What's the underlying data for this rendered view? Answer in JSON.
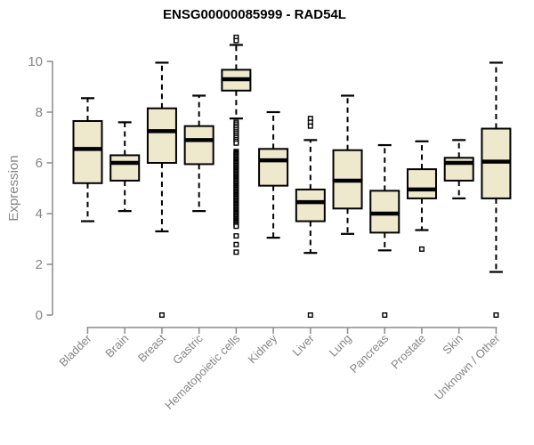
{
  "title": "ENSG00000085999 - RAD54L",
  "chart_data": {
    "type": "boxplot",
    "title": "ENSG00000085999 - RAD54L",
    "xlabel": "",
    "ylabel": "Expression",
    "ylim": [
      0,
      10
    ],
    "yticks": [
      0,
      2,
      4,
      6,
      8,
      10
    ],
    "grid": false,
    "legend_position": "none",
    "categories": [
      "Bladder",
      "Brain",
      "Breast",
      "Gastric",
      "Hematopoietic cells",
      "Kidney",
      "Liver",
      "Lung",
      "Pancreas",
      "Prostate",
      "Skin",
      "Unknown / Other"
    ],
    "series": [
      {
        "name": "Bladder",
        "whisker_low": 3.7,
        "q1": 5.2,
        "median": 6.55,
        "q3": 7.65,
        "whisker_high": 8.55,
        "outliers": []
      },
      {
        "name": "Brain",
        "whisker_low": 4.1,
        "q1": 5.3,
        "median": 6.0,
        "q3": 6.3,
        "whisker_high": 7.6,
        "outliers": []
      },
      {
        "name": "Breast",
        "whisker_low": 3.3,
        "q1": 6.0,
        "median": 7.25,
        "q3": 8.15,
        "whisker_high": 9.95,
        "outliers": [
          0
        ]
      },
      {
        "name": "Gastric",
        "whisker_low": 4.1,
        "q1": 5.95,
        "median": 6.9,
        "q3": 7.45,
        "whisker_high": 8.65,
        "outliers": []
      },
      {
        "name": "Hematopoietic cells",
        "whisker_low": 7.75,
        "q1": 8.85,
        "median": 9.3,
        "q3": 9.67,
        "whisker_high": 10.65,
        "outliers": [
          10.95,
          10.82,
          7.6,
          7.53,
          7.45,
          7.38,
          7.3,
          7.22,
          7.15,
          7.07,
          7.0,
          6.92,
          6.85,
          6.78,
          6.45,
          6.4,
          6.35,
          6.3,
          6.25,
          6.2,
          6.15,
          6.1,
          6.05,
          6.0,
          5.95,
          5.9,
          5.85,
          5.8,
          5.75,
          5.7,
          5.65,
          5.6,
          5.55,
          5.5,
          5.45,
          5.4,
          5.35,
          5.3,
          5.25,
          5.2,
          5.15,
          5.1,
          5.05,
          5.0,
          4.95,
          4.9,
          4.85,
          4.8,
          4.75,
          4.7,
          4.65,
          4.6,
          4.55,
          4.5,
          4.45,
          4.4,
          4.35,
          4.3,
          4.25,
          4.2,
          4.15,
          4.1,
          4.05,
          4.0,
          3.95,
          3.9,
          3.85,
          3.8,
          3.75,
          3.7,
          3.65,
          3.6,
          3.55,
          3.5,
          3.12,
          2.78,
          2.48
        ]
      },
      {
        "name": "Kidney",
        "whisker_low": 3.05,
        "q1": 5.1,
        "median": 6.1,
        "q3": 6.55,
        "whisker_high": 8.0,
        "outliers": []
      },
      {
        "name": "Liver",
        "whisker_low": 2.45,
        "q1": 3.7,
        "median": 4.45,
        "q3": 4.95,
        "whisker_high": 6.9,
        "outliers": [
          7.75,
          7.6,
          7.45,
          0
        ]
      },
      {
        "name": "Lung",
        "whisker_low": 3.2,
        "q1": 4.2,
        "median": 5.3,
        "q3": 6.5,
        "whisker_high": 8.65,
        "outliers": []
      },
      {
        "name": "Pancreas",
        "whisker_low": 2.55,
        "q1": 3.25,
        "median": 4.0,
        "q3": 4.9,
        "whisker_high": 6.7,
        "outliers": [
          0
        ]
      },
      {
        "name": "Prostate",
        "whisker_low": 3.35,
        "q1": 4.6,
        "median": 4.95,
        "q3": 5.75,
        "whisker_high": 6.85,
        "outliers": [
          2.6
        ]
      },
      {
        "name": "Skin",
        "whisker_low": 4.6,
        "q1": 5.3,
        "median": 6.0,
        "q3": 6.2,
        "whisker_high": 6.9,
        "outliers": []
      },
      {
        "name": "Unknown / Other",
        "whisker_low": 1.7,
        "q1": 4.6,
        "median": 6.05,
        "q3": 7.35,
        "whisker_high": 9.95,
        "outliers": [
          0
        ]
      }
    ],
    "colors": {
      "box_fill": "#EEE8CD",
      "box_stroke": "#000000",
      "median": "#000000",
      "whisker": "#000000",
      "outlier_stroke": "#000000",
      "outlier_fill": "#FFFFFF",
      "axis": "#8A8A8A",
      "tick_text": "#858585",
      "title": "#000000",
      "background": "#FFFFFF"
    }
  }
}
